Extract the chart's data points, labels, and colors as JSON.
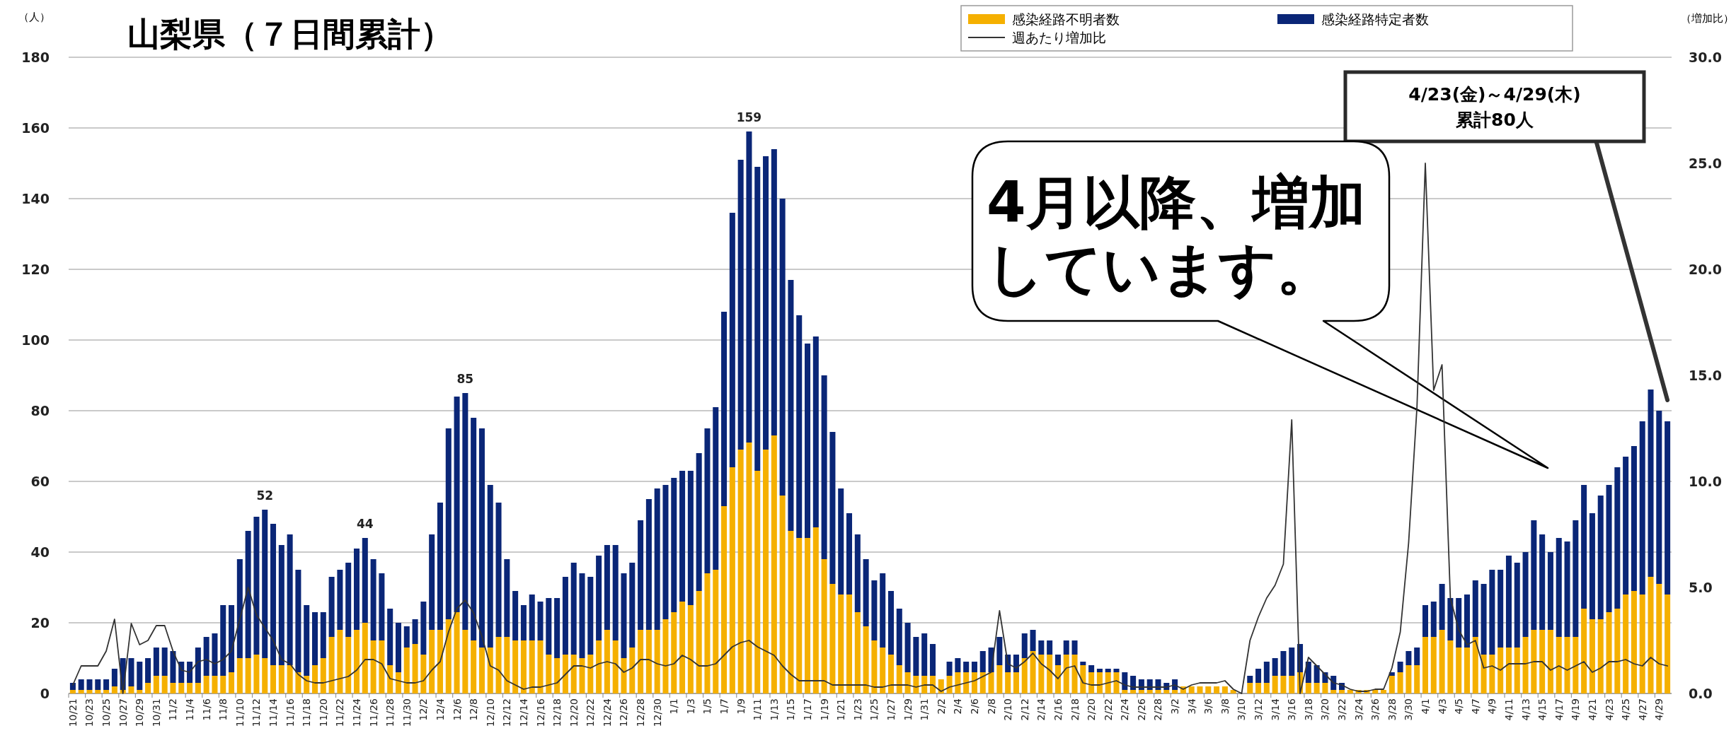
{
  "chart_data": {
    "type": "bar",
    "title": "山梨県（７日間累計）",
    "ylabel": "（人）",
    "y2label": "（増加比）",
    "categories": [
      "10/21",
      null,
      "10/23",
      null,
      "10/25",
      null,
      "10/27",
      null,
      "10/29",
      null,
      "10/31",
      null,
      "11/2",
      null,
      "11/4",
      null,
      "11/6",
      null,
      "11/8",
      null,
      "11/10",
      null,
      "11/12",
      null,
      "11/14",
      null,
      "11/16",
      null,
      "11/18",
      null,
      "11/20",
      null,
      "11/22",
      null,
      "11/24",
      null,
      "11/26",
      null,
      "11/28",
      null,
      "11/30",
      null,
      "12/2",
      null,
      "12/4",
      null,
      "12/6",
      null,
      "12/8",
      null,
      "12/10",
      null,
      "12/12",
      null,
      "12/14",
      null,
      "12/16",
      null,
      "12/18",
      null,
      "12/20",
      null,
      "12/22",
      null,
      "12/24",
      null,
      "12/26",
      null,
      "12/28",
      null,
      "12/30",
      null,
      "1/1",
      null,
      "1/3",
      null,
      "1/5",
      null,
      "1/7",
      null,
      "1/9",
      null,
      "1/11",
      null,
      "1/13",
      null,
      "1/15",
      null,
      "1/17",
      null,
      "1/19",
      null,
      "1/21",
      null,
      "1/23",
      null,
      "1/25",
      null,
      "1/27",
      null,
      "1/29",
      null,
      "1/31",
      null,
      "2/2",
      null,
      "2/4",
      null,
      "2/6",
      null,
      "2/8",
      null,
      "2/10",
      null,
      "2/12",
      null,
      "2/14",
      null,
      "2/16",
      null,
      "2/18",
      null,
      "2/20",
      null,
      "2/22",
      null,
      "2/24",
      null,
      "2/26",
      null,
      "2/28",
      null,
      "3/2",
      null,
      "3/4",
      null,
      "3/6",
      null,
      "3/8",
      null,
      "3/10",
      null,
      "3/12",
      null,
      "3/14",
      null,
      "3/16",
      null,
      "3/18",
      null,
      "3/20",
      null,
      "3/22",
      null,
      "3/24",
      null,
      "3/26",
      null,
      "3/28",
      null,
      "3/30",
      null,
      "4/1",
      null,
      "4/3",
      null,
      "4/5",
      null,
      "4/7",
      null,
      "4/9",
      null,
      "4/11",
      null,
      "4/13",
      null,
      "4/15",
      null,
      "4/17",
      null,
      "4/19",
      null,
      "4/21",
      null,
      "4/23",
      null,
      "4/25",
      null,
      "4/27",
      null,
      "4/29",
      null
    ],
    "stacked": true,
    "series": [
      {
        "name": "感染経路不明者数",
        "color": "#f5b000",
        "values": [
          1,
          1,
          1,
          1,
          1,
          2,
          1,
          2,
          1,
          3,
          5,
          5,
          3,
          3,
          3,
          3,
          5,
          5,
          5,
          6,
          10,
          10,
          11,
          10,
          8,
          8,
          8,
          6,
          5,
          8,
          10,
          16,
          18,
          16,
          18,
          20,
          15,
          15,
          8,
          6,
          13,
          14,
          11,
          18,
          18,
          21,
          23,
          18,
          15,
          13,
          13,
          16,
          16,
          15,
          15,
          15,
          15,
          11,
          10,
          11,
          11,
          10,
          11,
          15,
          18,
          15,
          10,
          13,
          18,
          18,
          18,
          21,
          23,
          26,
          25,
          29,
          34,
          35,
          53,
          64,
          69,
          71,
          63,
          69,
          73,
          56,
          46,
          44,
          44,
          47,
          38,
          31,
          28,
          28,
          23,
          19,
          15,
          13,
          11,
          8,
          6,
          5,
          5,
          5,
          4,
          5,
          6,
          6,
          6,
          6,
          6,
          8,
          6,
          6,
          10,
          12,
          11,
          11,
          8,
          11,
          11,
          8,
          6,
          6,
          6,
          6,
          1,
          1,
          1,
          1,
          1,
          1,
          1,
          2,
          2,
          2,
          2,
          2,
          2,
          1,
          0,
          3,
          3,
          3,
          5,
          5,
          5,
          6,
          3,
          3,
          3,
          1,
          1,
          1,
          1,
          1,
          1,
          1,
          5,
          6,
          8,
          8,
          16,
          16,
          18,
          15,
          13,
          13,
          16,
          11,
          11,
          13,
          13,
          13,
          16,
          18,
          18,
          18,
          16,
          16,
          16,
          24,
          21,
          21,
          23,
          24,
          28,
          29,
          28,
          33,
          31,
          28
        ]
      },
      {
        "name": "感染経路特定者数",
        "color": "#0a2677",
        "values": [
          2,
          3,
          3,
          3,
          3,
          5,
          9,
          8,
          8,
          7,
          8,
          8,
          9,
          6,
          6,
          10,
          11,
          12,
          20,
          19,
          28,
          36,
          39,
          42,
          40,
          34,
          37,
          29,
          20,
          15,
          13,
          17,
          17,
          21,
          23,
          24,
          23,
          19,
          16,
          14,
          6,
          7,
          15,
          27,
          36,
          54,
          61,
          67,
          63,
          62,
          46,
          38,
          22,
          14,
          10,
          13,
          11,
          16,
          17,
          22,
          26,
          24,
          22,
          24,
          24,
          27,
          24,
          24,
          31,
          37,
          40,
          38,
          38,
          37,
          38,
          39,
          41,
          46,
          55,
          72,
          82,
          88,
          86,
          83,
          81,
          84,
          71,
          63,
          55,
          54,
          52,
          43,
          30,
          23,
          22,
          19,
          17,
          21,
          18,
          16,
          14,
          11,
          12,
          9,
          0,
          4,
          4,
          3,
          3,
          6,
          7,
          8,
          5,
          5,
          7,
          6,
          4,
          4,
          3,
          4,
          4,
          1,
          2,
          1,
          1,
          1,
          5,
          4,
          3,
          3,
          3,
          2,
          3,
          0,
          0,
          0,
          0,
          0,
          0,
          0,
          0,
          2,
          4,
          6,
          5,
          7,
          8,
          8,
          6,
          5,
          3,
          4,
          2,
          0,
          0,
          0,
          0,
          0,
          1,
          3,
          4,
          5,
          9,
          10,
          13,
          12,
          14,
          15,
          16,
          20,
          24,
          22,
          26,
          24,
          24,
          31,
          27,
          22,
          28,
          27,
          33,
          35,
          30,
          35,
          36,
          40,
          39,
          41,
          49,
          53,
          49,
          49
        ]
      },
      {
        "name": "週あたり増加比",
        "type": "line",
        "axis": "y2",
        "color": "#333333",
        "values": [
          0.4,
          1.3,
          1.3,
          1.3,
          2.0,
          3.5,
          0.0,
          3.3,
          2.3,
          2.5,
          3.2,
          3.2,
          2.0,
          1.1,
          1.0,
          1.5,
          1.6,
          1.4,
          1.6,
          2.0,
          3.5,
          5.0,
          3.7,
          3.1,
          2.5,
          1.6,
          1.4,
          0.9,
          0.6,
          0.5,
          0.5,
          0.6,
          0.7,
          0.8,
          1.1,
          1.6,
          1.6,
          1.4,
          0.7,
          0.6,
          0.5,
          0.5,
          0.6,
          1.1,
          1.5,
          2.9,
          4.0,
          4.4,
          3.8,
          2.7,
          1.3,
          1.1,
          0.6,
          0.4,
          0.2,
          0.3,
          0.3,
          0.4,
          0.5,
          0.9,
          1.3,
          1.3,
          1.2,
          1.4,
          1.5,
          1.4,
          1.0,
          1.2,
          1.6,
          1.6,
          1.4,
          1.3,
          1.4,
          1.8,
          1.6,
          1.3,
          1.3,
          1.4,
          1.8,
          2.2,
          2.4,
          2.5,
          2.2,
          2.0,
          1.8,
          1.3,
          0.9,
          0.6,
          0.6,
          0.6,
          0.6,
          0.4,
          0.4,
          0.4,
          0.4,
          0.4,
          0.3,
          0.3,
          0.4,
          0.4,
          0.4,
          0.3,
          0.4,
          0.4,
          0.1,
          0.3,
          0.4,
          0.5,
          0.6,
          0.8,
          1.0,
          3.9,
          1.4,
          1.2,
          1.5,
          1.9,
          1.4,
          1.1,
          0.7,
          1.2,
          1.3,
          0.5,
          0.4,
          0.4,
          0.5,
          0.6,
          0.4,
          0.3,
          0.3,
          0.3,
          0.3,
          0.3,
          0.4,
          0.2,
          0.4,
          0.5,
          0.5,
          0.5,
          0.6,
          0.2,
          0.0,
          2.5,
          3.6,
          4.5,
          5.1,
          6.1,
          12.9,
          0.0,
          1.7,
          1.3,
          0.9,
          0.5,
          0.4,
          0.2,
          0.1,
          0.1,
          0.2,
          0.2,
          1.2,
          2.9,
          7.1,
          13.5,
          25.0,
          14.3,
          15.5,
          4.5,
          3.0,
          2.3,
          2.5,
          1.2,
          1.3,
          1.1,
          1.4,
          1.4,
          1.4,
          1.5,
          1.5,
          1.1,
          1.3,
          1.1,
          1.3,
          1.5,
          1.0,
          1.2,
          1.5,
          1.5,
          1.6,
          1.4,
          1.3,
          1.7,
          1.4,
          1.3
        ]
      }
    ],
    "totals": [
      null,
      null,
      null,
      null,
      null,
      null,
      null,
      null,
      null,
      null,
      null,
      null,
      null,
      null,
      null,
      null,
      null,
      null,
      null,
      null,
      null,
      null,
      null,
      "52",
      null,
      null,
      null,
      null,
      null,
      null,
      null,
      null,
      null,
      null,
      null,
      "44",
      null,
      null,
      null,
      null,
      null,
      null,
      null,
      null,
      null,
      null,
      null,
      "85",
      null,
      null,
      null,
      null,
      null,
      null,
      null,
      null,
      null,
      null,
      null,
      null,
      null,
      null,
      null,
      null,
      null,
      null,
      null,
      null,
      null,
      null,
      null,
      null,
      null,
      null,
      null,
      null,
      null,
      null,
      null,
      null,
      null,
      "159",
      null,
      null,
      null,
      null,
      null,
      null,
      null,
      null,
      null,
      null,
      null,
      null,
      null,
      null,
      null,
      null,
      null,
      null,
      null,
      null,
      null,
      null,
      null,
      null,
      null,
      null,
      null,
      null,
      null,
      null,
      null,
      null,
      null,
      null,
      null,
      null,
      null,
      null,
      null,
      null,
      null,
      null,
      null,
      null,
      null,
      null,
      null,
      null,
      null,
      null,
      null,
      null,
      null,
      null,
      null,
      null,
      null,
      null,
      null,
      null,
      null,
      null,
      null,
      null,
      null,
      null,
      null,
      null,
      null,
      null,
      null,
      null,
      null,
      null,
      null,
      null,
      null,
      null,
      null,
      null,
      null,
      null,
      null,
      null,
      null,
      null,
      null,
      null,
      null,
      null,
      null,
      null,
      null,
      null,
      null,
      null,
      null,
      null,
      null,
      null,
      null,
      null,
      null,
      null,
      null,
      null
    ],
    "ylim": [
      0,
      180
    ],
    "yticks": [
      0,
      20,
      40,
      60,
      80,
      100,
      120,
      140,
      160,
      180
    ],
    "y2lim": [
      0,
      30
    ],
    "y2ticks": [
      {
        "value": 0,
        "label": "0.0"
      },
      {
        "value": 5,
        "label": "5.0"
      },
      {
        "value": 10,
        "label": "10.0"
      },
      {
        "value": 15,
        "label": "15.0"
      },
      {
        "value": 20,
        "label": "20.0"
      },
      {
        "value": 25,
        "label": "25.0"
      },
      {
        "value": 30,
        "label": "30.0"
      }
    ],
    "grid": "y",
    "legend": "top right",
    "annotations": [
      "4/23(金)～4/29(木)\n累計80人",
      "4月以降、増加しています。"
    ]
  }
}
